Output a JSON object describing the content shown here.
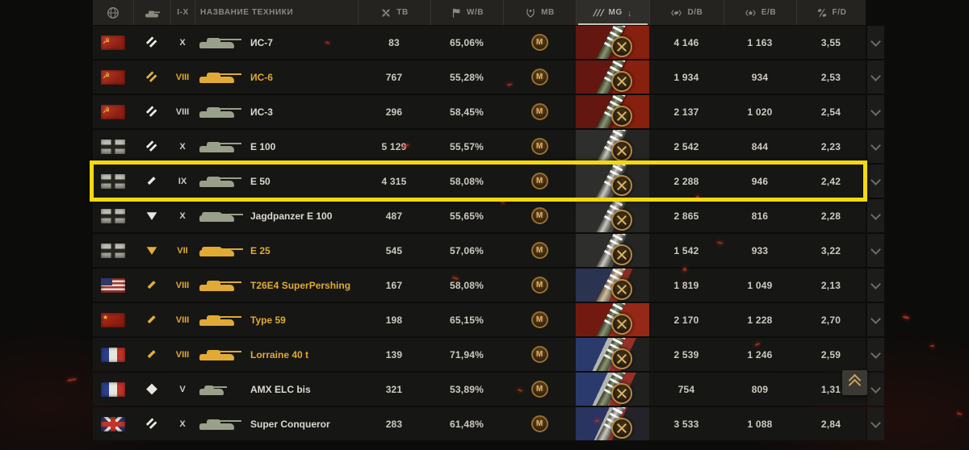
{
  "table": {
    "tier_filter": "I-X",
    "name_column_label": "НАЗВАНИЕ ТЕХНИКИ",
    "mg_icon_glyph": "///",
    "sort_indicator": "↓",
    "stat_columns": [
      {
        "id": "tb",
        "label": "ТВ",
        "icon": "crossed-swords-icon"
      },
      {
        "id": "wb",
        "label": "W/B",
        "icon": "flag-icon"
      },
      {
        "id": "mb",
        "label": "MB",
        "icon": "wreath-icon"
      },
      {
        "id": "mg",
        "label": "MG",
        "icon": "gun-marks-icon",
        "sorted": "desc"
      },
      {
        "id": "db",
        "label": "D/B",
        "icon": "shell-icon"
      },
      {
        "id": "eb",
        "label": "E/B",
        "icon": "star-icon"
      },
      {
        "id": "fd",
        "label": "F/D",
        "icon": "ratio-icon"
      }
    ],
    "rows": [
      {
        "nation": "ussr",
        "class": "heavy",
        "premium": false,
        "tier": "X",
        "name": "ИС-7",
        "battles": "83",
        "winrate": "65,06%",
        "mastery": "M",
        "avg_damage": "4 146",
        "avg_xp": "1 163",
        "ratio": "3,55",
        "highlighted": false
      },
      {
        "nation": "ussr",
        "class": "heavy",
        "premium": true,
        "tier": "VIII",
        "name": "ИС-6",
        "battles": "767",
        "winrate": "55,28%",
        "mastery": "M",
        "avg_damage": "1 934",
        "avg_xp": "934",
        "ratio": "2,53",
        "highlighted": false
      },
      {
        "nation": "ussr",
        "class": "heavy",
        "premium": false,
        "tier": "VIII",
        "name": "ИС-3",
        "battles": "296",
        "winrate": "58,45%",
        "mastery": "M",
        "avg_damage": "2 137",
        "avg_xp": "1 020",
        "ratio": "2,54",
        "highlighted": false
      },
      {
        "nation": "germany",
        "class": "heavy",
        "premium": false,
        "tier": "X",
        "name": "E 100",
        "battles": "5 129",
        "winrate": "55,57%",
        "mastery": "M",
        "avg_damage": "2 542",
        "avg_xp": "844",
        "ratio": "2,23",
        "highlighted": false
      },
      {
        "nation": "germany",
        "class": "medium",
        "premium": false,
        "tier": "IX",
        "name": "E 50",
        "battles": "4 315",
        "winrate": "58,08%",
        "mastery": "M",
        "avg_damage": "2 288",
        "avg_xp": "946",
        "ratio": "2,42",
        "highlighted": true
      },
      {
        "nation": "germany",
        "class": "td",
        "premium": false,
        "tier": "X",
        "name": "Jagdpanzer E 100",
        "battles": "487",
        "winrate": "55,65%",
        "mastery": "M",
        "avg_damage": "2 865",
        "avg_xp": "816",
        "ratio": "2,28",
        "highlighted": false
      },
      {
        "nation": "germany",
        "class": "td",
        "premium": true,
        "tier": "VII",
        "name": "E 25",
        "battles": "545",
        "winrate": "57,06%",
        "mastery": "M",
        "avg_damage": "1 542",
        "avg_xp": "933",
        "ratio": "3,22",
        "highlighted": false
      },
      {
        "nation": "usa",
        "class": "medium",
        "premium": true,
        "tier": "VIII",
        "name": "T26E4 SuperPershing",
        "battles": "167",
        "winrate": "58,08%",
        "mastery": "M",
        "avg_damage": "1 819",
        "avg_xp": "1 049",
        "ratio": "2,13",
        "highlighted": false
      },
      {
        "nation": "china",
        "class": "medium",
        "premium": true,
        "tier": "VIII",
        "name": "Type 59",
        "battles": "198",
        "winrate": "65,15%",
        "mastery": "M",
        "avg_damage": "2 170",
        "avg_xp": "1 228",
        "ratio": "2,70",
        "highlighted": false
      },
      {
        "nation": "france",
        "class": "medium",
        "premium": true,
        "tier": "VIII",
        "name": "Lorraine 40 t",
        "battles": "139",
        "winrate": "71,94%",
        "mastery": "M",
        "avg_damage": "2 539",
        "avg_xp": "1 246",
        "ratio": "2,59",
        "highlighted": false
      },
      {
        "nation": "france",
        "class": "light",
        "premium": false,
        "tier": "V",
        "name": "AMX ELC bis",
        "battles": "321",
        "winrate": "53,89%",
        "mastery": "M",
        "avg_damage": "754",
        "avg_xp": "809",
        "ratio": "1,31",
        "highlighted": false
      },
      {
        "nation": "uk",
        "class": "heavy",
        "premium": false,
        "tier": "X",
        "name": "Super Conqueror",
        "battles": "283",
        "winrate": "61,48%",
        "mastery": "M",
        "avg_damage": "3 533",
        "avg_xp": "1 088",
        "ratio": "2,84",
        "highlighted": false
      }
    ]
  }
}
